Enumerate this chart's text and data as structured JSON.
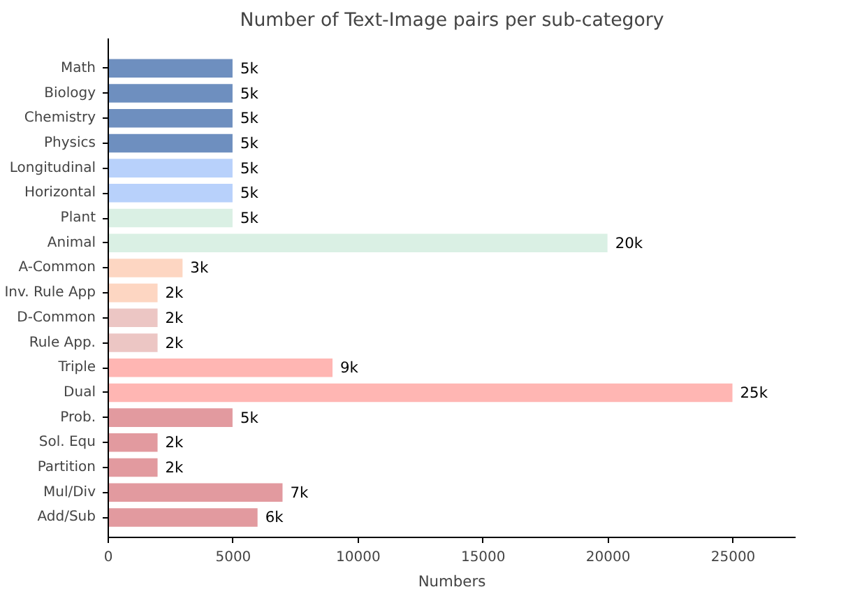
{
  "chart_data": {
    "type": "bar",
    "orientation": "horizontal",
    "title": "Number of Text-Image pairs per sub-category",
    "xlabel": "Numbers",
    "categories": [
      "Math",
      "Biology",
      "Chemistry",
      "Physics",
      "Longitudinal",
      "Horizontal",
      "Plant",
      "Animal",
      "A-Common",
      "Inv. Rule App",
      "D-Common",
      "Rule App.",
      "Triple",
      "Dual",
      "Prob.",
      "Sol. Equ",
      "Partition",
      "Mul/Div",
      "Add/Sub"
    ],
    "values": [
      5000,
      5000,
      5000,
      5000,
      5000,
      5000,
      5000,
      20000,
      3000,
      2000,
      2000,
      2000,
      9000,
      25000,
      5000,
      2000,
      2000,
      7000,
      6000
    ],
    "value_labels": [
      "5k",
      "5k",
      "5k",
      "5k",
      "5k",
      "5k",
      "5k",
      "20k",
      "3k",
      "2k",
      "2k",
      "2k",
      "9k",
      "25k",
      "5k",
      "2k",
      "2k",
      "7k",
      "6k"
    ],
    "colors": [
      "#6e8fbf",
      "#6e8fbf",
      "#6e8fbf",
      "#6e8fbf",
      "#b8d1fb",
      "#b8d1fb",
      "#daf0e4",
      "#daf0e4",
      "#fdd6c2",
      "#fdd6c2",
      "#ecc6c4",
      "#ecc6c4",
      "#ffb6b3",
      "#ffb6b3",
      "#e29a9f",
      "#e29a9f",
      "#e29a9f",
      "#e29a9f",
      "#e29a9f"
    ],
    "xlim": [
      0,
      27500
    ],
    "xticks": [
      0,
      5000,
      10000,
      15000,
      20000,
      25000
    ],
    "grid": false
  }
}
